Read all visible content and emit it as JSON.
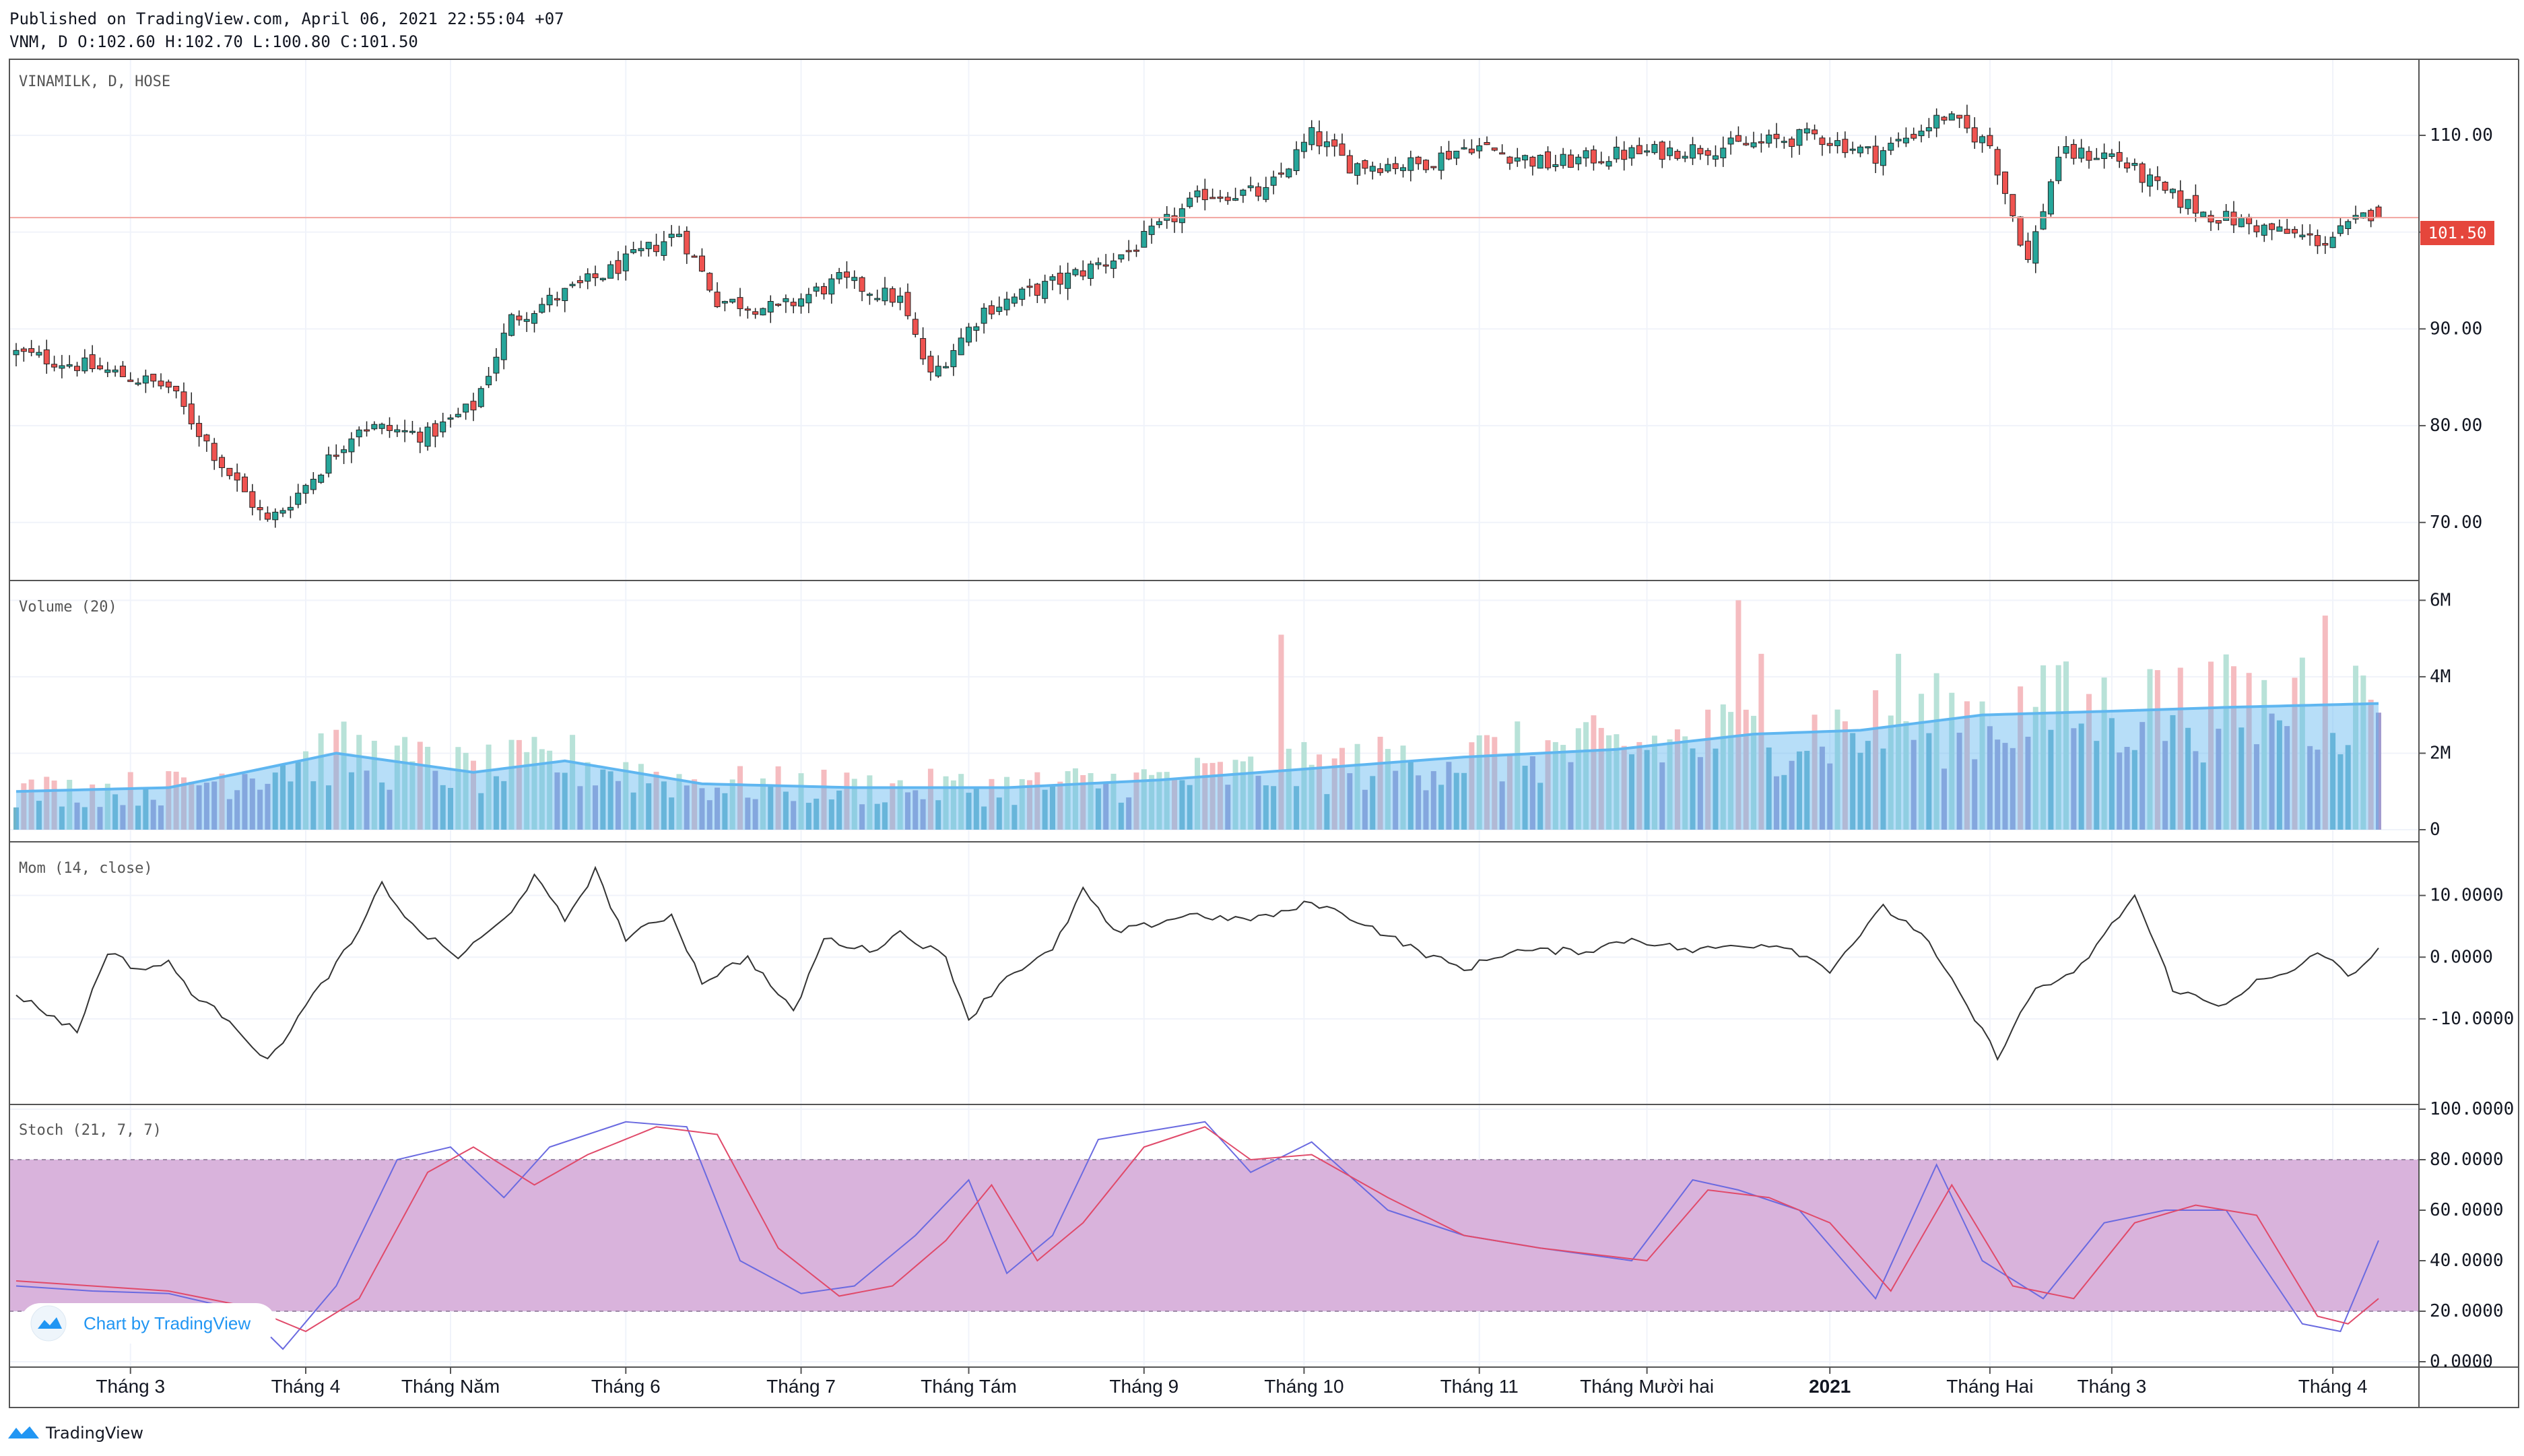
{
  "header": {
    "published": "Published on TradingView.com, April 06, 2021 22:55:04 +07",
    "ohlc": "VNM, D O:102.60 H:102.70 L:100.80 C:101.50"
  },
  "footer": {
    "brand": "TradingView",
    "badge": "Chart by TradingView"
  },
  "colors": {
    "up": "#26a69a",
    "down": "#ef5350",
    "volMA": "#5fb6f0",
    "mom": "#333333",
    "stochK": "#6a6ae0",
    "stochD": "#e04a6a",
    "band": "#d9b3dc"
  },
  "chart_data": [
    {
      "type": "candlestick",
      "title": "VINAMILK, D, HOSE",
      "price_label": "101.50",
      "ylim": [
        64,
        118
      ],
      "yticks": [
        "110.00",
        "100.00",
        "90.00",
        "80.00",
        "70.00"
      ],
      "ytick_values": [
        110,
        100,
        90,
        80,
        70
      ],
      "close_anchors": [
        [
          0,
          87.5
        ],
        [
          10,
          86
        ],
        [
          20,
          84
        ],
        [
          27,
          76
        ],
        [
          33,
          70
        ],
        [
          37,
          73
        ],
        [
          45,
          80
        ],
        [
          54,
          79
        ],
        [
          60,
          82
        ],
        [
          65,
          91
        ],
        [
          78,
          96
        ],
        [
          87,
          100
        ],
        [
          92,
          93
        ],
        [
          100,
          92
        ],
        [
          108,
          95
        ],
        [
          116,
          93
        ],
        [
          120,
          85
        ],
        [
          127,
          92
        ],
        [
          137,
          95
        ],
        [
          146,
          98
        ],
        [
          156,
          104
        ],
        [
          164,
          104
        ],
        [
          170,
          110
        ],
        [
          175,
          107
        ],
        [
          184,
          107
        ],
        [
          191,
          109
        ],
        [
          201,
          107
        ],
        [
          210,
          108
        ],
        [
          227,
          109
        ],
        [
          236,
          110
        ],
        [
          244,
          108
        ],
        [
          253,
          112
        ],
        [
          259,
          109
        ],
        [
          264,
          97
        ],
        [
          268,
          108
        ],
        [
          275,
          108
        ],
        [
          282,
          104
        ],
        [
          287,
          102
        ],
        [
          297,
          100
        ],
        [
          303,
          99
        ],
        [
          309,
          102
        ],
        [
          310,
          101.5
        ]
      ],
      "x_axis": [
        "Tháng 3",
        "Tháng 4",
        "Tháng Năm",
        "Tháng 6",
        "Tháng 7",
        "Tháng Tám",
        "Tháng 9",
        "Tháng 10",
        "Tháng 11",
        "Tháng Mười hai",
        "2021",
        "Tháng Hai",
        "Tháng 3",
        "Tháng 4"
      ],
      "x_axis_bar_index": [
        15,
        38,
        57,
        80,
        103,
        125,
        148,
        169,
        192,
        214,
        238,
        259,
        275,
        304
      ]
    },
    {
      "type": "bar",
      "title": "Volume (20)",
      "ylim": [
        0,
        6.2
      ],
      "yticks": [
        "6M",
        "4M",
        "2M",
        "0"
      ],
      "ytick_values": [
        6,
        4,
        2,
        0
      ],
      "ma_anchors": [
        [
          0,
          1.0
        ],
        [
          20,
          1.1
        ],
        [
          30,
          1.5
        ],
        [
          42,
          2.0
        ],
        [
          60,
          1.5
        ],
        [
          72,
          1.8
        ],
        [
          90,
          1.2
        ],
        [
          110,
          1.1
        ],
        [
          130,
          1.1
        ],
        [
          150,
          1.3
        ],
        [
          170,
          1.6
        ],
        [
          190,
          1.9
        ],
        [
          210,
          2.1
        ],
        [
          228,
          2.5
        ],
        [
          242,
          2.6
        ],
        [
          258,
          3.0
        ],
        [
          275,
          3.1
        ],
        [
          290,
          3.2
        ],
        [
          310,
          3.3
        ]
      ],
      "spike_bars": [
        [
          166,
          5.1
        ],
        [
          226,
          6.0
        ],
        [
          229,
          4.6
        ],
        [
          247,
          4.6
        ],
        [
          269,
          4.4
        ],
        [
          280,
          4.2
        ],
        [
          300,
          4.5
        ],
        [
          303,
          5.6
        ],
        [
          309,
          3.4
        ]
      ]
    },
    {
      "type": "line",
      "title": "Mom (14, close)",
      "ylim": [
        -17,
        14
      ],
      "yticks": [
        "10.0000",
        "0.0000",
        "-10.0000"
      ],
      "ytick_values": [
        10,
        0,
        -10
      ],
      "anchors": [
        [
          0,
          -6
        ],
        [
          8,
          -12
        ],
        [
          12,
          1
        ],
        [
          16,
          -2
        ],
        [
          20,
          -1
        ],
        [
          24,
          -7
        ],
        [
          28,
          -10
        ],
        [
          33,
          -17
        ],
        [
          38,
          -8
        ],
        [
          45,
          4
        ],
        [
          48,
          12
        ],
        [
          52,
          5
        ],
        [
          58,
          0
        ],
        [
          64,
          6
        ],
        [
          68,
          13
        ],
        [
          72,
          6
        ],
        [
          76,
          14
        ],
        [
          80,
          3
        ],
        [
          86,
          7
        ],
        [
          90,
          -4
        ],
        [
          96,
          0
        ],
        [
          102,
          -9
        ],
        [
          106,
          3
        ],
        [
          112,
          1
        ],
        [
          116,
          4
        ],
        [
          122,
          0
        ],
        [
          125,
          -10
        ],
        [
          130,
          -3
        ],
        [
          136,
          1
        ],
        [
          140,
          11
        ],
        [
          144,
          4
        ],
        [
          148,
          5
        ],
        [
          154,
          7
        ],
        [
          160,
          6
        ],
        [
          166,
          7
        ],
        [
          170,
          9
        ],
        [
          176,
          6
        ],
        [
          184,
          1
        ],
        [
          190,
          -2
        ],
        [
          196,
          1
        ],
        [
          206,
          1
        ],
        [
          212,
          3
        ],
        [
          220,
          1
        ],
        [
          226,
          2
        ],
        [
          232,
          2
        ],
        [
          238,
          -2
        ],
        [
          245,
          8
        ],
        [
          250,
          4
        ],
        [
          256,
          -8
        ],
        [
          260,
          -16
        ],
        [
          265,
          -5
        ],
        [
          270,
          -3
        ],
        [
          278,
          10
        ],
        [
          283,
          -5
        ],
        [
          289,
          -8
        ],
        [
          294,
          -4
        ],
        [
          298,
          -3
        ],
        [
          302,
          1
        ],
        [
          306,
          -3
        ],
        [
          310,
          1
        ]
      ]
    },
    {
      "type": "line",
      "title": "Stoch (21, 7, 7)",
      "ylim": [
        0,
        100
      ],
      "yticks": [
        "100.0000",
        "80.0000",
        "60.0000",
        "40.0000",
        "20.0000",
        "0.0000"
      ],
      "ytick_values": [
        100,
        80,
        60,
        40,
        20,
        0
      ],
      "band": [
        20,
        80
      ],
      "series": [
        {
          "name": "%K",
          "anchors": [
            [
              0,
              30
            ],
            [
              10,
              28
            ],
            [
              20,
              27
            ],
            [
              30,
              20
            ],
            [
              35,
              5
            ],
            [
              42,
              30
            ],
            [
              50,
              80
            ],
            [
              57,
              85
            ],
            [
              64,
              65
            ],
            [
              70,
              85
            ],
            [
              80,
              95
            ],
            [
              88,
              93
            ],
            [
              95,
              40
            ],
            [
              103,
              27
            ],
            [
              110,
              30
            ],
            [
              118,
              50
            ],
            [
              125,
              72
            ],
            [
              130,
              35
            ],
            [
              136,
              50
            ],
            [
              142,
              88
            ],
            [
              150,
              92
            ],
            [
              156,
              95
            ],
            [
              162,
              75
            ],
            [
              170,
              87
            ],
            [
              180,
              60
            ],
            [
              190,
              50
            ],
            [
              200,
              45
            ],
            [
              212,
              40
            ],
            [
              220,
              72
            ],
            [
              226,
              68
            ],
            [
              234,
              60
            ],
            [
              244,
              25
            ],
            [
              252,
              78
            ],
            [
              258,
              40
            ],
            [
              266,
              25
            ],
            [
              274,
              55
            ],
            [
              282,
              60
            ],
            [
              290,
              60
            ],
            [
              300,
              15
            ],
            [
              305,
              12
            ],
            [
              310,
              48
            ]
          ]
        },
        {
          "name": "%D",
          "anchors": [
            [
              0,
              32
            ],
            [
              10,
              30
            ],
            [
              20,
              28
            ],
            [
              30,
              22
            ],
            [
              38,
              12
            ],
            [
              45,
              25
            ],
            [
              54,
              75
            ],
            [
              60,
              85
            ],
            [
              68,
              70
            ],
            [
              75,
              82
            ],
            [
              84,
              93
            ],
            [
              92,
              90
            ],
            [
              100,
              45
            ],
            [
              108,
              26
            ],
            [
              115,
              30
            ],
            [
              122,
              48
            ],
            [
              128,
              70
            ],
            [
              134,
              40
            ],
            [
              140,
              55
            ],
            [
              148,
              85
            ],
            [
              156,
              93
            ],
            [
              162,
              80
            ],
            [
              170,
              82
            ],
            [
              180,
              65
            ],
            [
              190,
              50
            ],
            [
              200,
              45
            ],
            [
              214,
              40
            ],
            [
              222,
              68
            ],
            [
              230,
              65
            ],
            [
              238,
              55
            ],
            [
              246,
              28
            ],
            [
              254,
              70
            ],
            [
              262,
              30
            ],
            [
              270,
              25
            ],
            [
              278,
              55
            ],
            [
              286,
              62
            ],
            [
              294,
              58
            ],
            [
              302,
              18
            ],
            [
              306,
              15
            ],
            [
              310,
              25
            ]
          ]
        }
      ]
    }
  ]
}
